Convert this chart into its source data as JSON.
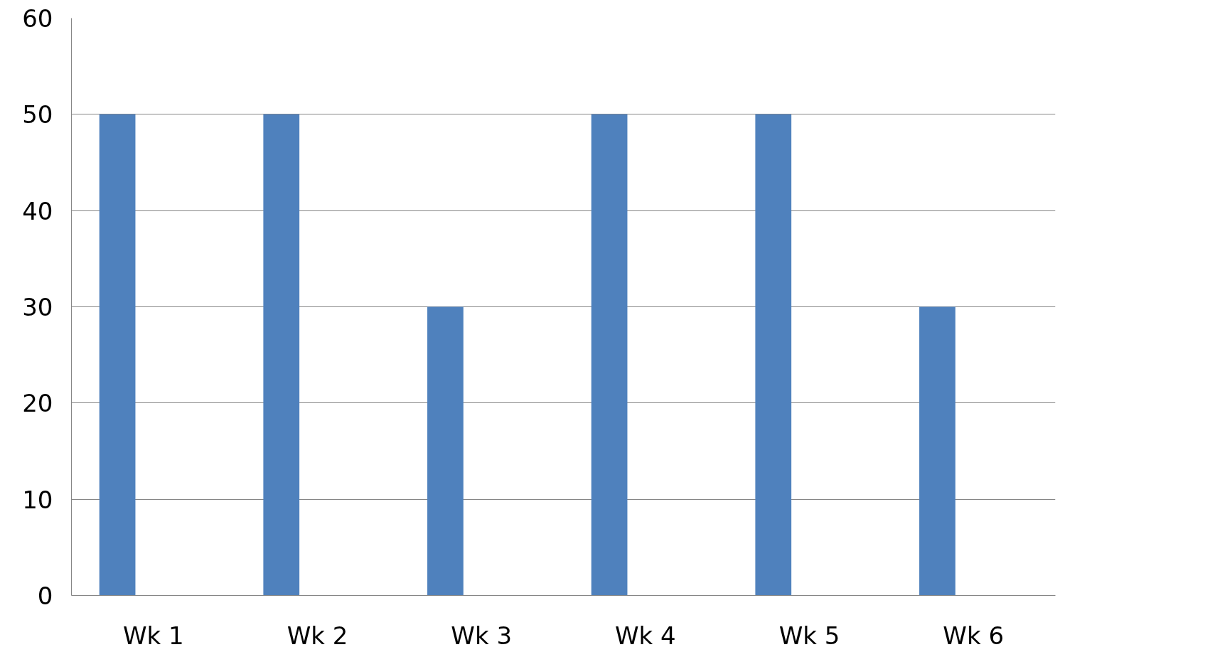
{
  "chart_data": {
    "type": "bar",
    "categories": [
      "Wk 1",
      "Wk 2",
      "Wk 3",
      "Wk 4",
      "Wk 5",
      "Wk 6"
    ],
    "values": [
      50,
      50,
      30,
      50,
      50,
      30
    ],
    "color": "#4f81bd",
    "ylim": [
      0,
      60
    ],
    "yticks": [
      0,
      10,
      20,
      30,
      40,
      50,
      60
    ],
    "grid": "y"
  }
}
